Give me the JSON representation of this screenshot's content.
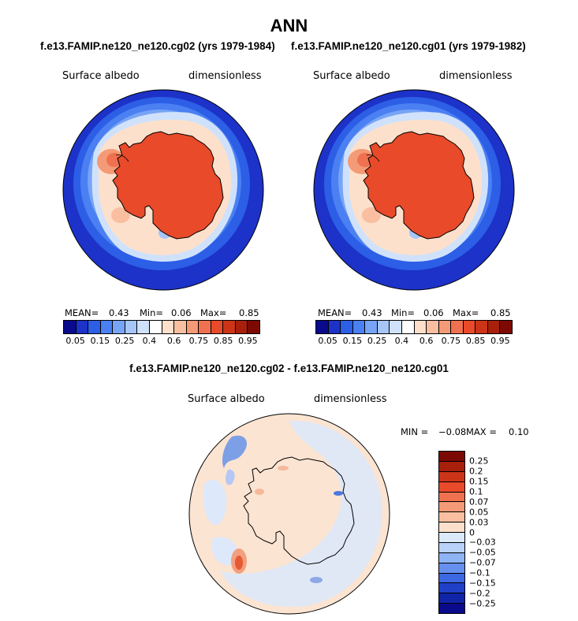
{
  "title": "ANN",
  "panels": {
    "left": {
      "header": "f.e13.FAMIP.ne120_ne120.cg02 (yrs 1979-1984)",
      "var_label": "Surface albedo",
      "units_label": "dimensionless",
      "mean_label": "MEAN=",
      "mean": "0.43",
      "min_label": "Min=",
      "min": "0.06",
      "max_label": "Max=",
      "max": "0.85"
    },
    "right": {
      "header": "f.e13.FAMIP.ne120_ne120.cg01 (yrs 1979-1982)",
      "var_label": "Surface albedo",
      "units_label": "dimensionless",
      "mean_label": "MEAN=",
      "mean": "0.43",
      "min_label": "Min=",
      "min": "0.06",
      "max_label": "Max=",
      "max": "0.85"
    },
    "diff": {
      "header": "f.e13.FAMIP.ne120_ne120.cg02 - f.e13.FAMIP.ne120_ne120.cg01",
      "var_label": "Surface albedo",
      "units_label": "dimensionless",
      "min_label": "MIN =",
      "min": "−0.08",
      "max_label": "MAX =",
      "max": "0.10"
    }
  },
  "chart_data": [
    {
      "type": "heatmap",
      "projection": "south polar stereographic",
      "title": "f.e13.FAMIP.ne120_ne120.cg02 (yrs 1979-1984)",
      "variable": "Surface albedo",
      "units": "dimensionless",
      "stats": {
        "mean": 0.43,
        "min": 0.06,
        "max": 0.85
      },
      "colorbar_labels": [
        "0.05",
        "0.15",
        "0.25",
        "0.4",
        "0.6",
        "0.75",
        "0.85",
        "0.95"
      ],
      "colorbar_colors": [
        "#0a0a8c",
        "#1c32c8",
        "#2c5ee6",
        "#4a80f2",
        "#78a4f6",
        "#a6c6f8",
        "#d0e2fb",
        "#ffffff",
        "#fde0cb",
        "#f9bfa0",
        "#f49a76",
        "#ef7150",
        "#e84a2a",
        "#cc3418",
        "#a8200c",
        "#7c0a02"
      ]
    },
    {
      "type": "heatmap",
      "projection": "south polar stereographic",
      "title": "f.e13.FAMIP.ne120_ne120.cg01 (yrs 1979-1982)",
      "variable": "Surface albedo",
      "units": "dimensionless",
      "stats": {
        "mean": 0.43,
        "min": 0.06,
        "max": 0.85
      },
      "colorbar_labels": [
        "0.05",
        "0.15",
        "0.25",
        "0.4",
        "0.6",
        "0.75",
        "0.85",
        "0.95"
      ],
      "colorbar_colors": [
        "#0a0a8c",
        "#1c32c8",
        "#2c5ee6",
        "#4a80f2",
        "#78a4f6",
        "#a6c6f8",
        "#d0e2fb",
        "#ffffff",
        "#fde0cb",
        "#f9bfa0",
        "#f49a76",
        "#ef7150",
        "#e84a2a",
        "#cc3418",
        "#a8200c",
        "#7c0a02"
      ]
    },
    {
      "type": "heatmap",
      "projection": "south polar stereographic",
      "title": "f.e13.FAMIP.ne120_ne120.cg02 - f.e13.FAMIP.ne120_ne120.cg01",
      "variable": "Surface albedo",
      "units": "dimensionless",
      "stats": {
        "min": -0.08,
        "max": 0.1
      },
      "colorbar_labels": [
        "0.25",
        "0.2",
        "0.15",
        "0.1",
        "0.07",
        "0.05",
        "0.03",
        "0",
        "−0.03",
        "−0.05",
        "−0.07",
        "−0.1",
        "−0.15",
        "−0.2",
        "−0.25"
      ],
      "colorbar_colors": [
        "#7c0a02",
        "#a8200c",
        "#cc3418",
        "#e84a2a",
        "#ef7150",
        "#f49a76",
        "#f9bfa0",
        "#fde0cb",
        "#dbe9fb",
        "#b8d2fa",
        "#8fb4f6",
        "#6690f0",
        "#3c68e4",
        "#2040c8",
        "#1024a8",
        "#0a0a8c"
      ]
    }
  ]
}
